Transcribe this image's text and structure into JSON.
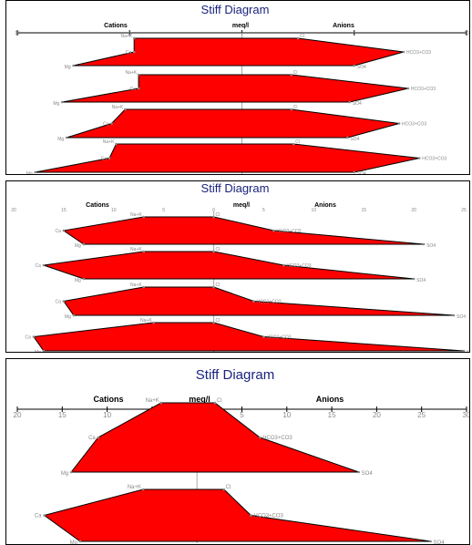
{
  "colors": {
    "fill": "#ff0000",
    "edge": "#000000",
    "title": "#1a237e",
    "tick": "#888888",
    "axis": "#000000",
    "mid": "#aaaaaa"
  },
  "chart_data": [
    {
      "type": "area",
      "title": "Stiff Diagram",
      "header": {
        "cations": "Cations",
        "center": "meq/l",
        "anions": "Anions"
      },
      "xlim": [
        -10,
        10
      ],
      "tick_labels": [
        "10",
        "5",
        "0",
        "5",
        "10"
      ],
      "ion_labels": {
        "left": [
          "Na+K",
          "Ca",
          "Mg"
        ],
        "right": [
          "Cl",
          "HCO3+CO3",
          "SO4"
        ]
      },
      "samples": [
        {
          "na_k": 4.8,
          "ca": 4.8,
          "mg": 7.5,
          "cl": 2.5,
          "hco3": 7.2,
          "so4": 5.0
        },
        {
          "na_k": 4.6,
          "ca": 4.6,
          "mg": 8.0,
          "cl": 2.2,
          "hco3": 7.4,
          "so4": 4.8
        },
        {
          "na_k": 5.2,
          "ca": 5.8,
          "mg": 7.8,
          "cl": 2.2,
          "hco3": 7.0,
          "so4": 4.7
        },
        {
          "na_k": 5.6,
          "ca": 5.9,
          "mg": 9.2,
          "cl": 2.3,
          "hco3": 7.9,
          "so4": 5.0
        }
      ]
    },
    {
      "type": "area",
      "title": "Stiff Diagram",
      "header": {
        "cations": "Cations",
        "center": "meq/l",
        "anions": "Anions"
      },
      "xlim": [
        -20,
        25
      ],
      "tick_labels": [
        "20",
        "15",
        "10",
        "5",
        "0",
        "5",
        "10",
        "15",
        "20",
        "25"
      ],
      "ion_labels": {
        "left": [
          "Na+K",
          "Ca",
          "Mg"
        ],
        "right": [
          "Cl",
          "HCO3+CO3",
          "SO4"
        ]
      },
      "samples": [
        {
          "na_k": 7.0,
          "ca": 15.0,
          "mg": 13.0,
          "cl": 0.0,
          "hco3": 6.0,
          "so4": 21.0
        },
        {
          "na_k": 7.0,
          "ca": 17.0,
          "mg": 13.0,
          "cl": 0.0,
          "hco3": 7.0,
          "so4": 20.0
        },
        {
          "na_k": 7.0,
          "ca": 15.0,
          "mg": 14.0,
          "cl": 0.0,
          "hco3": 4.0,
          "so4": 24.0
        },
        {
          "na_k": 6.0,
          "ca": 18.0,
          "mg": 17.0,
          "cl": 0.0,
          "hco3": 5.0,
          "so4": 25.0
        }
      ]
    },
    {
      "type": "area",
      "title": "Stiff Diagram",
      "header": {
        "cations": "Cations",
        "center": "meq/l",
        "anions": "Anions"
      },
      "xlim": [
        -20,
        30
      ],
      "tick_labels": [
        "20",
        "15",
        "10",
        "5",
        "0",
        "5",
        "10",
        "15",
        "20",
        "25",
        "30"
      ],
      "ion_labels": {
        "left": [
          "Na+K",
          "Ca",
          "Mg"
        ],
        "right": [
          "Cl",
          "HCO3+CO3",
          "SO4"
        ]
      },
      "samples": [
        {
          "na_k": 4.0,
          "ca": 11.0,
          "mg": 14.0,
          "cl": 2.0,
          "hco3": 7.0,
          "so4": 18.0
        },
        {
          "na_k": 6.0,
          "ca": 17.0,
          "mg": 13.0,
          "cl": 3.0,
          "hco3": 6.0,
          "so4": 26.0
        }
      ]
    }
  ]
}
